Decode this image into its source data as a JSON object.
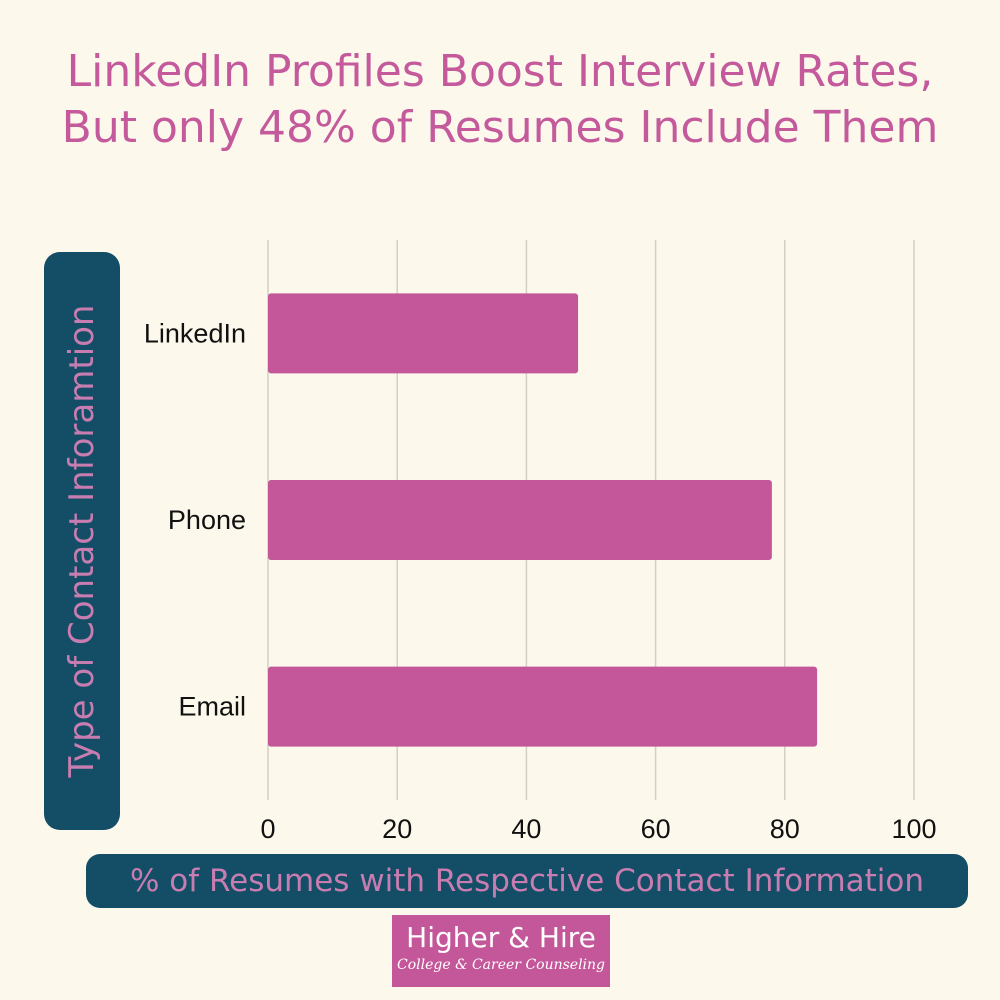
{
  "chart_data": {
    "type": "bar",
    "orientation": "horizontal",
    "title": "LinkedIn Profiles Boost Interview Rates, But only 48% of Resumes Include Them",
    "xlabel": "% of Resumes with Respective Contact Information",
    "ylabel": "Type of Contact Inforamtion",
    "categories": [
      "LinkedIn",
      "Phone",
      "Email"
    ],
    "values": [
      48,
      78,
      85
    ],
    "xlim": [
      0,
      100
    ],
    "xticks": [
      0,
      20,
      40,
      60,
      80,
      100
    ],
    "grid": "vertical",
    "bar_color": "#c4579a"
  },
  "branding": {
    "name": "Higher & Hire",
    "tagline": "College & Career Counseling"
  }
}
